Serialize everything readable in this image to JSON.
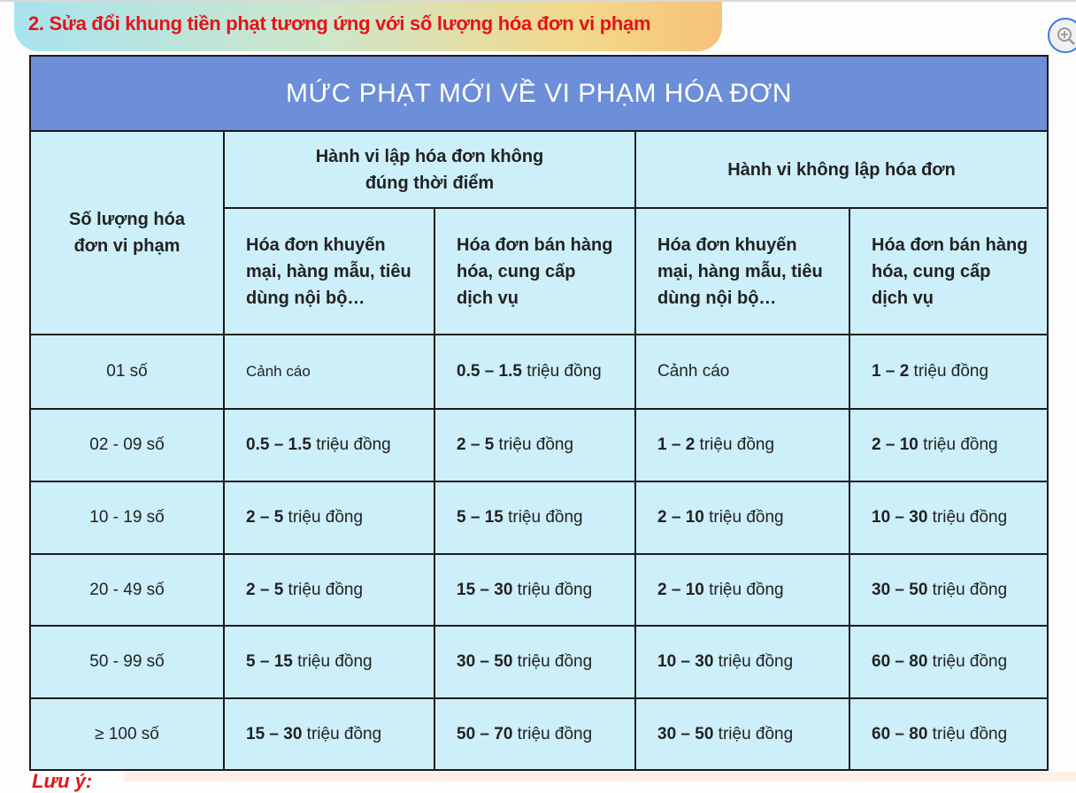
{
  "heading": "2. Sửa đổi khung tiền phạt tương ứng với số lượng hóa đơn vi phạm",
  "zoom_icon": "zoom-in-icon",
  "table": {
    "title": "MỨC PHẠT MỚI VỀ VI PHẠM HÓA ĐƠN",
    "row_header": "Số lượng hóa đơn vi phạm",
    "groups": [
      "Hành vi lập hóa đơn không đúng thời điểm",
      "Hành vi không lập hóa đơn"
    ],
    "subheaders": [
      "Hóa đơn khuyến mại, hàng mẫu, tiêu dùng nội bộ…",
      "Hóa đơn bán hàng hóa, cung cấp dịch vụ",
      "Hóa đơn khuyến mại, hàng mẫu, tiêu dùng nội bộ…",
      "Hóa đơn bán hàng hóa, cung cấp dịch vụ"
    ],
    "rows": [
      {
        "label": "01 số",
        "cells": [
          {
            "b": "",
            "t": "Cảnh cáo"
          },
          {
            "b": "0.5 – 1.5",
            "t": " triệu đồng"
          },
          {
            "b": "",
            "t": "Cảnh cáo"
          },
          {
            "b": "1 – 2",
            "t": " triệu đồng"
          }
        ]
      },
      {
        "label": "02 - 09 số",
        "cells": [
          {
            "b": "0.5 – 1.5",
            "t": " triệu đồng"
          },
          {
            "b": "2 – 5",
            "t": " triệu đồng"
          },
          {
            "b": "1 – 2",
            "t": " triệu đồng"
          },
          {
            "b": "2 – 10",
            "t": " triệu đồng"
          }
        ]
      },
      {
        "label": "10 - 19 số",
        "cells": [
          {
            "b": "2 – 5",
            "t": " triệu đồng"
          },
          {
            "b": "5 – 15",
            "t": " triệu đồng"
          },
          {
            "b": "2 – 10",
            "t": " triệu đồng"
          },
          {
            "b": "10 – 30",
            "t": " triệu đồng"
          }
        ]
      },
      {
        "label": "20 - 49 số",
        "cells": [
          {
            "b": "2 – 5",
            "t": " triệu đồng"
          },
          {
            "b": "15 – 30",
            "t": " triệu đồng"
          },
          {
            "b": "2 – 10",
            "t": " triệu đồng"
          },
          {
            "b": "30 – 50",
            "t": " triệu đồng"
          }
        ]
      },
      {
        "label": "50 - 99 số",
        "cells": [
          {
            "b": "5 – 15",
            "t": " triệu đồng"
          },
          {
            "b": "30 – 50",
            "t": " triệu đồng"
          },
          {
            "b": "10 – 30",
            "t": " triệu đồng"
          },
          {
            "b": "60 – 80",
            "t": " triệu đồng"
          }
        ]
      },
      {
        "label": "≥ 100 số",
        "cells": [
          {
            "b": "15 – 30",
            "t": " triệu đồng"
          },
          {
            "b": "50 – 70",
            "t": " triệu đồng"
          },
          {
            "b": "30 – 50",
            "t": " triệu đồng"
          },
          {
            "b": "60 – 80",
            "t": " triệu đồng"
          }
        ]
      }
    ]
  },
  "note": "Lưu ý:"
}
